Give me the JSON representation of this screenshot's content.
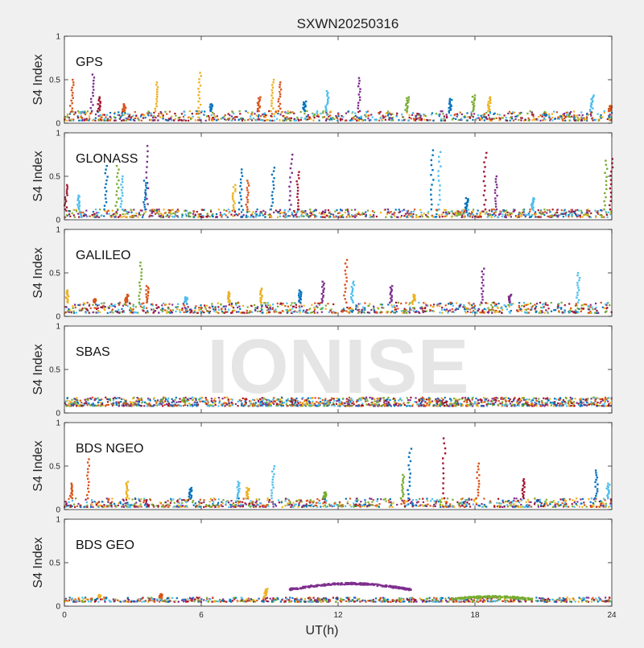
{
  "figure": {
    "title": "SXWN20250316",
    "watermark": "IONISE",
    "background_color": "#f0f0f0",
    "axes_color": "#ffffff",
    "watermark_color": "#e6e6e6"
  },
  "palette": [
    "#0072BD",
    "#D95319",
    "#EDB120",
    "#7E2F8E",
    "#77AC30",
    "#4DBEEE",
    "#A2142F"
  ],
  "chart_data": [
    {
      "type": "scatter",
      "label": "GPS",
      "ylabel": "S4 Index",
      "xlim": [
        0,
        24
      ],
      "ylim": [
        0,
        1
      ],
      "yticks": [
        0,
        0.5,
        1
      ],
      "ytick_labels": [
        "0",
        "0.5",
        "1"
      ],
      "baseline": [
        0.03,
        0.14
      ],
      "baseline_density": 900,
      "spikes": [
        {
          "x": 0.3,
          "y": 0.5,
          "color": 1
        },
        {
          "x": 1.2,
          "y": 0.56,
          "color": 3
        },
        {
          "x": 1.5,
          "y": 0.3,
          "color": 6
        },
        {
          "x": 2.6,
          "y": 0.22,
          "color": 1
        },
        {
          "x": 4.0,
          "y": 0.47,
          "color": 2
        },
        {
          "x": 5.9,
          "y": 0.58,
          "color": 2
        },
        {
          "x": 6.4,
          "y": 0.22,
          "color": 0
        },
        {
          "x": 8.5,
          "y": 0.3,
          "color": 1
        },
        {
          "x": 9.1,
          "y": 0.5,
          "color": 2
        },
        {
          "x": 9.4,
          "y": 0.47,
          "color": 1
        },
        {
          "x": 10.5,
          "y": 0.25,
          "color": 0
        },
        {
          "x": 11.5,
          "y": 0.37,
          "color": 5
        },
        {
          "x": 12.9,
          "y": 0.52,
          "color": 3
        },
        {
          "x": 15.0,
          "y": 0.3,
          "color": 4
        },
        {
          "x": 16.9,
          "y": 0.28,
          "color": 0
        },
        {
          "x": 17.9,
          "y": 0.32,
          "color": 4
        },
        {
          "x": 18.6,
          "y": 0.3,
          "color": 2
        },
        {
          "x": 23.1,
          "y": 0.32,
          "color": 5
        },
        {
          "x": 23.9,
          "y": 0.2,
          "color": 1
        }
      ]
    },
    {
      "type": "scatter",
      "label": "GLONASS",
      "ylabel": "S4 Index",
      "xlim": [
        0,
        24
      ],
      "ylim": [
        0,
        1
      ],
      "yticks": [
        0,
        0.5,
        1
      ],
      "ytick_labels": [
        "0",
        "0.5",
        "1"
      ],
      "baseline": [
        0.03,
        0.12
      ],
      "baseline_density": 900,
      "spikes": [
        {
          "x": 0.05,
          "y": 0.4,
          "color": 6
        },
        {
          "x": 0.6,
          "y": 0.28,
          "color": 5
        },
        {
          "x": 1.8,
          "y": 0.62,
          "color": 0
        },
        {
          "x": 2.3,
          "y": 0.62,
          "color": 4
        },
        {
          "x": 2.5,
          "y": 0.5,
          "color": 5
        },
        {
          "x": 3.6,
          "y": 0.85,
          "color": 3
        },
        {
          "x": 3.5,
          "y": 0.45,
          "color": 0
        },
        {
          "x": 7.4,
          "y": 0.4,
          "color": 2
        },
        {
          "x": 7.7,
          "y": 0.58,
          "color": 0
        },
        {
          "x": 8.0,
          "y": 0.45,
          "color": 1
        },
        {
          "x": 9.1,
          "y": 0.6,
          "color": 0
        },
        {
          "x": 9.9,
          "y": 0.75,
          "color": 3
        },
        {
          "x": 10.2,
          "y": 0.55,
          "color": 6
        },
        {
          "x": 16.1,
          "y": 0.8,
          "color": 0
        },
        {
          "x": 16.4,
          "y": 0.78,
          "color": 5
        },
        {
          "x": 17.6,
          "y": 0.25,
          "color": 0
        },
        {
          "x": 18.4,
          "y": 0.77,
          "color": 6
        },
        {
          "x": 18.9,
          "y": 0.5,
          "color": 3
        },
        {
          "x": 20.5,
          "y": 0.25,
          "color": 5
        },
        {
          "x": 23.7,
          "y": 0.68,
          "color": 4
        },
        {
          "x": 23.95,
          "y": 0.7,
          "color": 6
        }
      ]
    },
    {
      "type": "scatter",
      "label": "GALILEO",
      "ylabel": "S4 Index",
      "xlim": [
        0,
        24
      ],
      "ylim": [
        0,
        1
      ],
      "yticks": [
        0,
        0.5,
        1
      ],
      "ytick_labels": [
        "0",
        "0.5",
        "1"
      ],
      "baseline": [
        0.04,
        0.16
      ],
      "baseline_density": 900,
      "spikes": [
        {
          "x": 0.1,
          "y": 0.3,
          "color": 2
        },
        {
          "x": 1.3,
          "y": 0.2,
          "color": 1
        },
        {
          "x": 2.7,
          "y": 0.25,
          "color": 1
        },
        {
          "x": 3.3,
          "y": 0.62,
          "color": 4
        },
        {
          "x": 3.6,
          "y": 0.35,
          "color": 1
        },
        {
          "x": 5.3,
          "y": 0.22,
          "color": 5
        },
        {
          "x": 7.2,
          "y": 0.28,
          "color": 2
        },
        {
          "x": 8.6,
          "y": 0.32,
          "color": 2
        },
        {
          "x": 10.3,
          "y": 0.3,
          "color": 0
        },
        {
          "x": 11.3,
          "y": 0.4,
          "color": 3
        },
        {
          "x": 12.3,
          "y": 0.65,
          "color": 1
        },
        {
          "x": 12.6,
          "y": 0.4,
          "color": 5
        },
        {
          "x": 14.3,
          "y": 0.35,
          "color": 3
        },
        {
          "x": 15.3,
          "y": 0.25,
          "color": 2
        },
        {
          "x": 18.3,
          "y": 0.55,
          "color": 3
        },
        {
          "x": 19.5,
          "y": 0.25,
          "color": 3
        },
        {
          "x": 22.5,
          "y": 0.5,
          "color": 5
        }
      ]
    },
    {
      "type": "scatter",
      "label": "SBAS",
      "ylabel": "S4 Index",
      "xlim": [
        0,
        24
      ],
      "ylim": [
        0,
        1
      ],
      "yticks": [
        0,
        0.5,
        1
      ],
      "ytick_labels": [
        "0",
        "0.5",
        "1"
      ],
      "baseline": [
        0.08,
        0.18
      ],
      "baseline_density": 1400,
      "spikes": []
    },
    {
      "type": "scatter",
      "label": "BDS NGEO",
      "ylabel": "S4 Index",
      "xlim": [
        0,
        24
      ],
      "ylim": [
        0,
        1
      ],
      "yticks": [
        0,
        0.5,
        1
      ],
      "ytick_labels": [
        "0",
        "0.5",
        "1"
      ],
      "baseline": [
        0.03,
        0.13
      ],
      "baseline_density": 900,
      "spikes": [
        {
          "x": 0.3,
          "y": 0.3,
          "color": 1
        },
        {
          "x": 1.0,
          "y": 0.58,
          "color": 1
        },
        {
          "x": 2.7,
          "y": 0.32,
          "color": 2
        },
        {
          "x": 5.5,
          "y": 0.25,
          "color": 0
        },
        {
          "x": 7.6,
          "y": 0.32,
          "color": 5
        },
        {
          "x": 8.0,
          "y": 0.25,
          "color": 2
        },
        {
          "x": 9.1,
          "y": 0.5,
          "color": 5
        },
        {
          "x": 11.4,
          "y": 0.2,
          "color": 4
        },
        {
          "x": 14.8,
          "y": 0.4,
          "color": 4
        },
        {
          "x": 15.1,
          "y": 0.7,
          "color": 0
        },
        {
          "x": 16.6,
          "y": 0.82,
          "color": 6
        },
        {
          "x": 18.1,
          "y": 0.53,
          "color": 1
        },
        {
          "x": 20.1,
          "y": 0.35,
          "color": 6
        },
        {
          "x": 23.3,
          "y": 0.45,
          "color": 0
        },
        {
          "x": 23.8,
          "y": 0.3,
          "color": 5
        }
      ]
    },
    {
      "type": "scatter",
      "label": "BDS GEO",
      "ylabel": "S4 Index",
      "xlabel": "UT(h)",
      "xlim": [
        0,
        24
      ],
      "ylim": [
        0,
        1
      ],
      "xticks": [
        0,
        6,
        12,
        18,
        24
      ],
      "xtick_labels": [
        "0",
        "6",
        "12",
        "18",
        "24"
      ],
      "yticks": [
        0,
        0.5,
        1
      ],
      "ytick_labels": [
        "0",
        "0.5",
        "1"
      ],
      "baseline": [
        0.05,
        0.1
      ],
      "baseline_density": 800,
      "spikes": [
        {
          "x": 1.5,
          "y": 0.13,
          "color": 2
        },
        {
          "x": 4.2,
          "y": 0.14,
          "color": 1
        },
        {
          "x": 8.8,
          "y": 0.2,
          "color": 2
        }
      ],
      "bands": [
        {
          "x0": 9.8,
          "x1": 15.2,
          "y0": 0.19,
          "y1": 0.26,
          "color": 3
        },
        {
          "x0": 17.0,
          "x1": 20.5,
          "y0": 0.08,
          "y1": 0.11,
          "color": 4
        }
      ]
    }
  ]
}
